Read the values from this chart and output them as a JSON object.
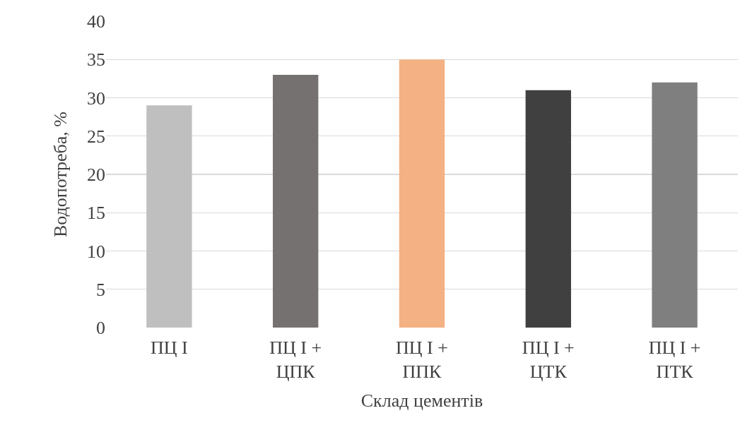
{
  "chart_data": {
    "type": "bar",
    "xlabel": "Склад цементів",
    "ylabel": "Водопотреба, %",
    "categories": [
      "ПЦ І",
      "ПЦ І +\nЦПК",
      "ПЦ І +\nППК",
      "ПЦ І +\nЦТК",
      "ПЦ І +\nПТК"
    ],
    "values": [
      29,
      33,
      35,
      31,
      32
    ],
    "colors": [
      "#bfbfbf",
      "#767171",
      "#f4b183",
      "#404040",
      "#7f7f7f"
    ],
    "ylim": [
      0,
      40
    ],
    "yticks": [
      0,
      5,
      10,
      15,
      20,
      25,
      30,
      35,
      40
    ],
    "grid": "y"
  }
}
